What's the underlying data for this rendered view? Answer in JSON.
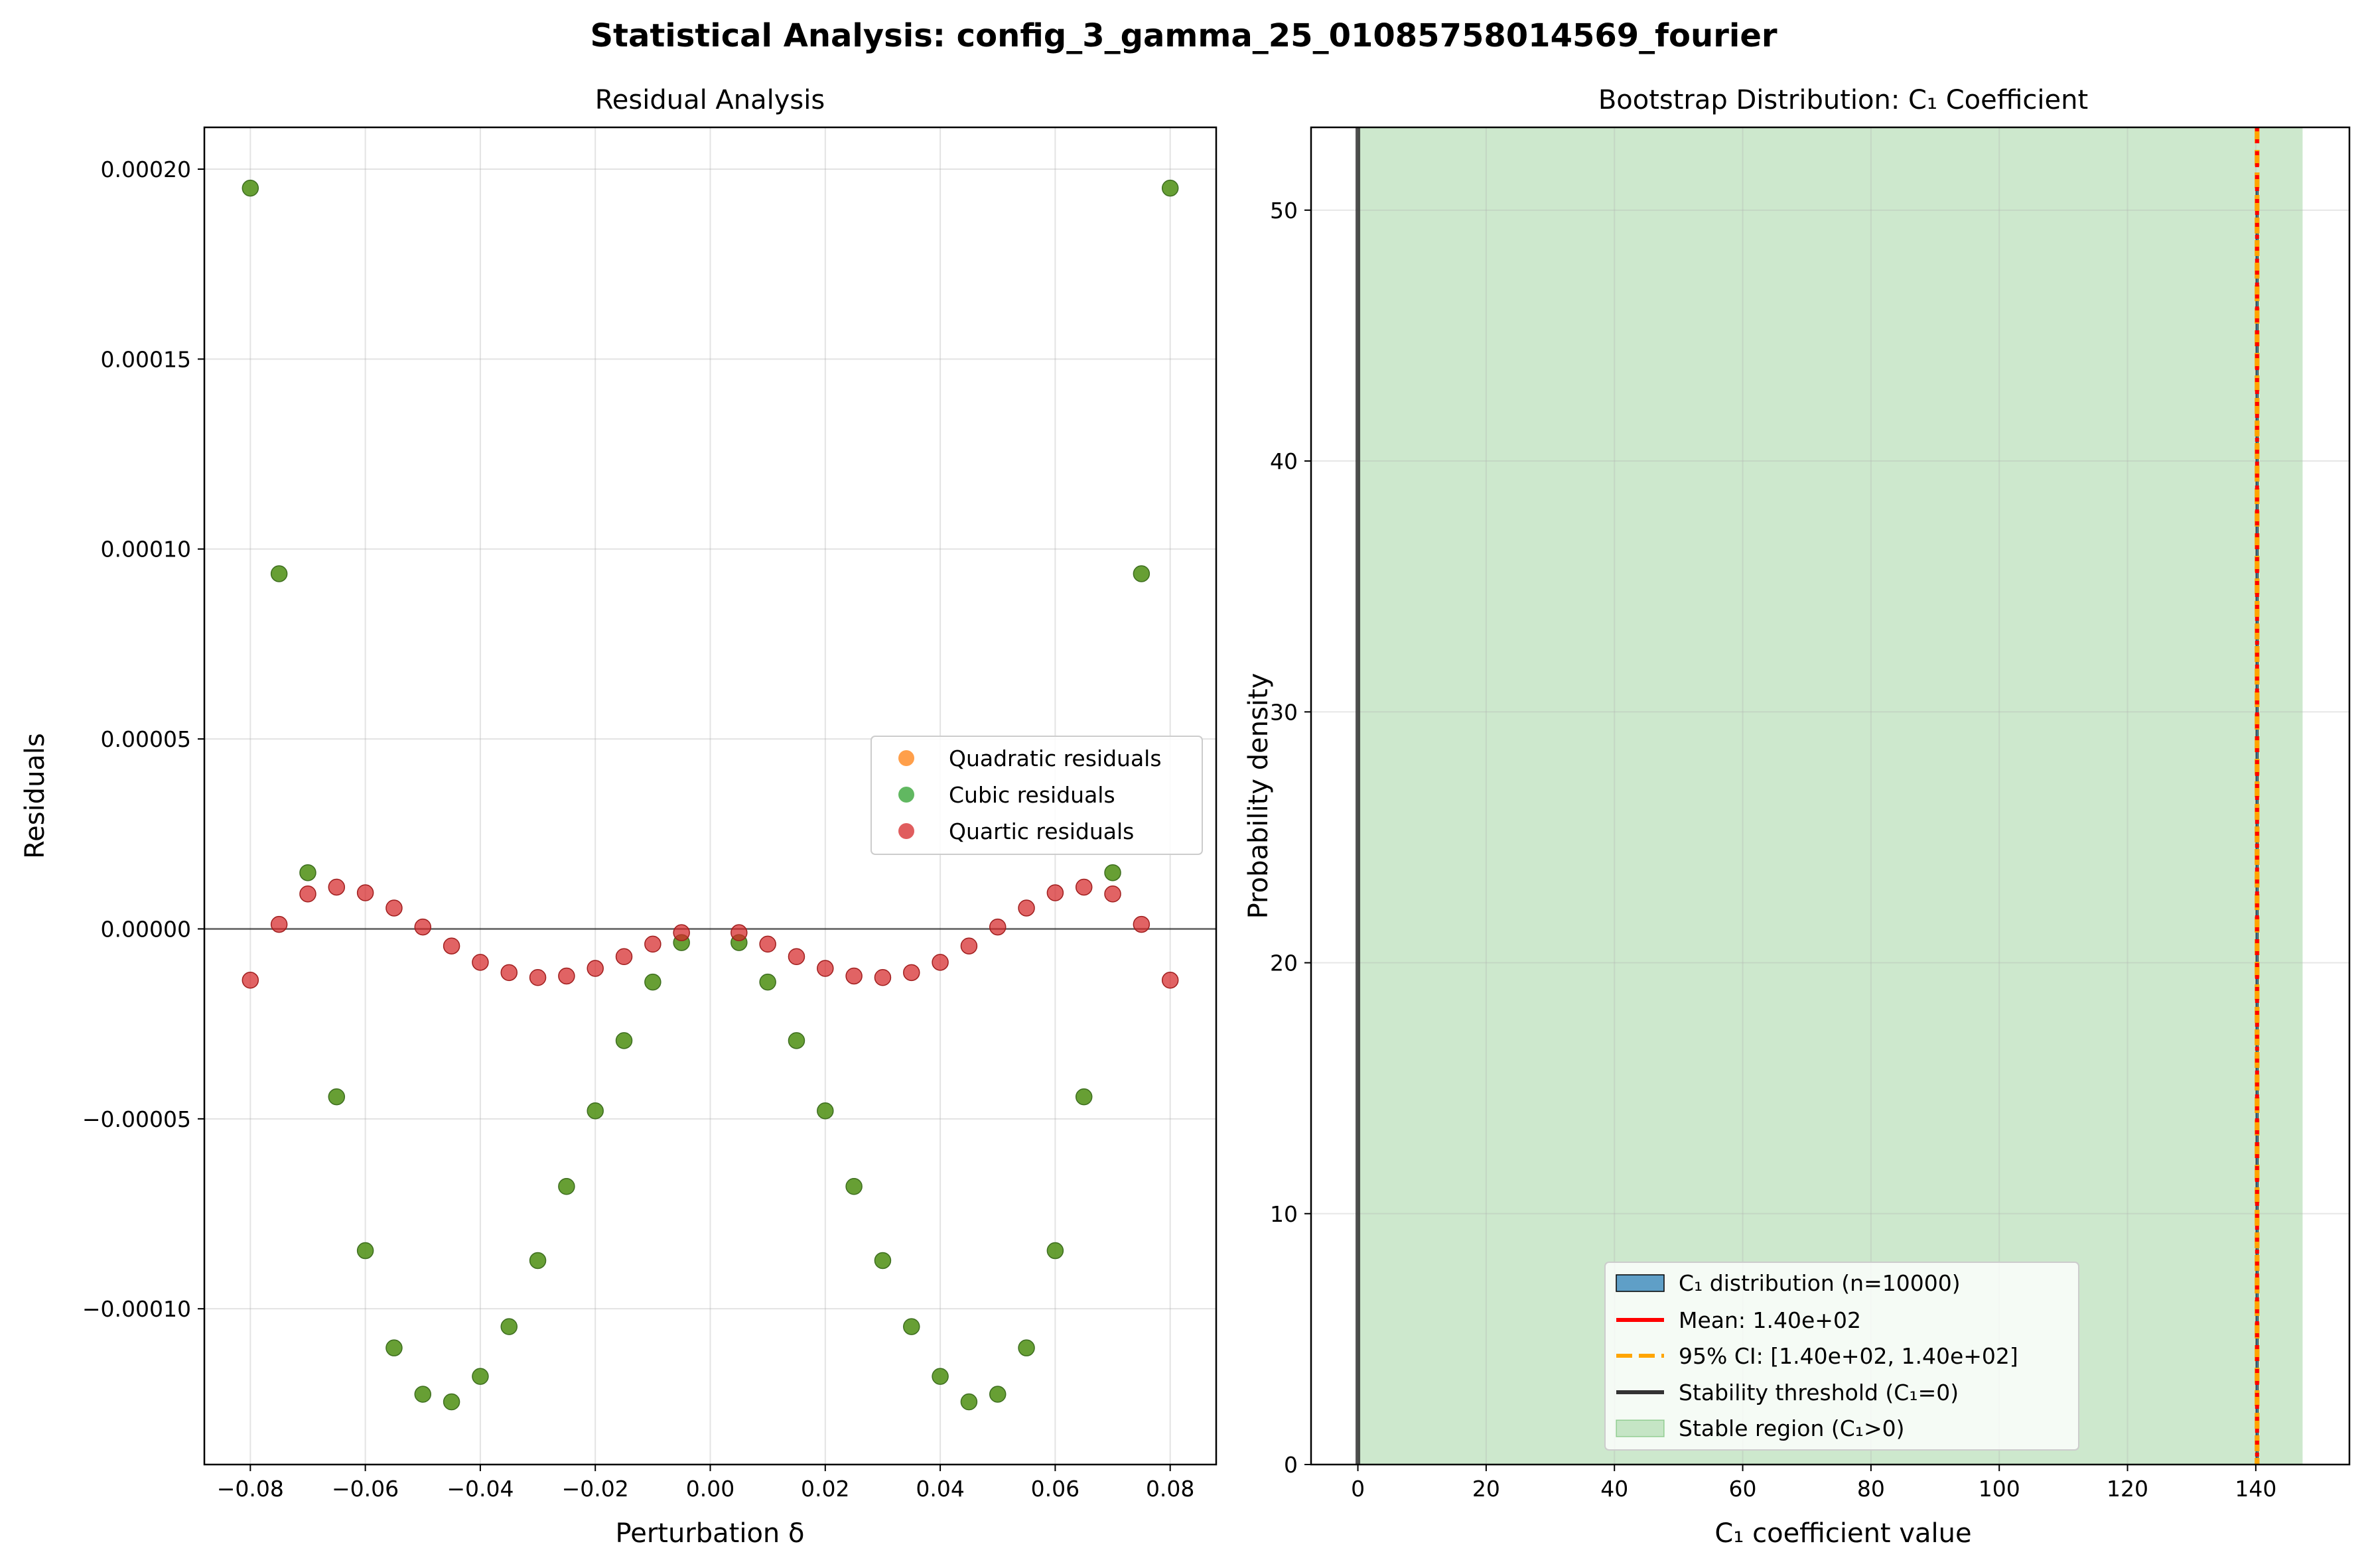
{
  "suptitle": "Statistical Analysis: config_3_gamma_25_01085758014569_fourier",
  "colors": {
    "quadratic": "#ff7f0e",
    "cubic": "#2ca02c",
    "quartic": "#d62728",
    "overlap": "#4f8d2b",
    "histogram": "#1f77b4",
    "mean": "#ff0000",
    "ci": "#ffa500",
    "threshold": "#333333",
    "stable_region": "#2ca02c"
  },
  "chart_data": [
    {
      "type": "scatter",
      "title": "Residual Analysis",
      "xlabel": "Perturbation δ",
      "ylabel": "Residuals",
      "xlim": [
        -0.088,
        0.088
      ],
      "ylim": [
        -0.000141,
        0.000211
      ],
      "xticks": [
        -0.08,
        -0.06,
        -0.04,
        -0.02,
        0.0,
        0.02,
        0.04,
        0.06,
        0.08
      ],
      "xtick_labels": [
        "−0.08",
        "−0.06",
        "−0.04",
        "−0.02",
        "0.00",
        "0.02",
        "0.04",
        "0.06",
        "0.08"
      ],
      "yticks": [
        -0.0001,
        -5e-05,
        0.0,
        5e-05,
        0.0001,
        0.00015,
        0.0002
      ],
      "ytick_labels": [
        "−0.00010",
        "−0.00005",
        "0.00000",
        "0.00005",
        "0.00010",
        "0.00015",
        "0.00020"
      ],
      "grid": true,
      "reference_line_y": 0,
      "legend_position": "center-right",
      "x": [
        -0.08,
        -0.075,
        -0.07,
        -0.065,
        -0.06,
        -0.055,
        -0.05,
        -0.045,
        -0.04,
        -0.035,
        -0.03,
        -0.025,
        -0.02,
        -0.015,
        -0.01,
        -0.005,
        0.005,
        0.01,
        0.015,
        0.02,
        0.025,
        0.03,
        0.035,
        0.04,
        0.045,
        0.05,
        0.055,
        0.06,
        0.065,
        0.07,
        0.075,
        0.08
      ],
      "series": [
        {
          "name": "Quadratic residuals",
          "color_key": "quadratic",
          "values": [
            0.000195,
            9.35e-05,
            1.48e-05,
            -4.42e-05,
            -8.47e-05,
            -0.0001103,
            -0.0001225,
            -0.0001245,
            -0.0001178,
            -0.0001047,
            -8.73e-05,
            -6.78e-05,
            -4.79e-05,
            -2.94e-05,
            -1.4e-05,
            -3.6e-06,
            -3.6e-06,
            -1.4e-05,
            -2.94e-05,
            -4.79e-05,
            -6.78e-05,
            -8.73e-05,
            -0.0001047,
            -0.0001178,
            -0.0001245,
            -0.0001225,
            -0.0001103,
            -8.47e-05,
            -4.42e-05,
            1.48e-05,
            9.35e-05,
            0.000195
          ]
        },
        {
          "name": "Cubic residuals",
          "color_key": "cubic",
          "values": [
            0.000195,
            9.35e-05,
            1.48e-05,
            -4.42e-05,
            -8.47e-05,
            -0.0001103,
            -0.0001225,
            -0.0001245,
            -0.0001178,
            -0.0001047,
            -8.73e-05,
            -6.78e-05,
            -4.79e-05,
            -2.94e-05,
            -1.4e-05,
            -3.6e-06,
            -3.6e-06,
            -1.4e-05,
            -2.94e-05,
            -4.79e-05,
            -6.78e-05,
            -8.73e-05,
            -0.0001047,
            -0.0001178,
            -0.0001245,
            -0.0001225,
            -0.0001103,
            -8.47e-05,
            -4.42e-05,
            1.48e-05,
            9.35e-05,
            0.000195
          ]
        },
        {
          "name": "Quartic residuals",
          "color_key": "quartic",
          "values": [
            -1.35e-05,
            1.2e-06,
            9.2e-06,
            1.1e-05,
            9.5e-06,
            5.5e-06,
            5e-07,
            -4.5e-06,
            -8.8e-06,
            -1.15e-05,
            -1.28e-05,
            -1.24e-05,
            -1.04e-05,
            -7.3e-06,
            -4e-06,
            -1e-06,
            -1e-06,
            -4e-06,
            -7.3e-06,
            -1.04e-05,
            -1.24e-05,
            -1.28e-05,
            -1.15e-05,
            -8.8e-06,
            -4.5e-06,
            5e-07,
            5.5e-06,
            9.5e-06,
            1.1e-05,
            9.2e-06,
            1.2e-06,
            -1.35e-05
          ]
        }
      ]
    },
    {
      "type": "histogram",
      "title": "Bootstrap Distribution: C₁ Coefficient",
      "xlabel": "C₁ coefficient value",
      "ylabel": "Probability density",
      "xlim": [
        -7.3,
        154.6
      ],
      "ylim": [
        0,
        53.3
      ],
      "xticks": [
        0,
        20,
        40,
        60,
        80,
        100,
        120,
        140
      ],
      "xtick_labels": [
        "0",
        "20",
        "40",
        "60",
        "80",
        "100",
        "120",
        "140"
      ],
      "yticks": [
        0,
        10,
        20,
        30,
        40,
        50
      ],
      "ytick_labels": [
        "0",
        "10",
        "20",
        "30",
        "40",
        "50"
      ],
      "grid": true,
      "legend_position": "lower-center",
      "mean": 140.2,
      "ci": [
        140.2,
        140.2
      ],
      "threshold": 0,
      "stable_region": [
        0,
        147.3
      ],
      "histogram_peak_density": 50.8,
      "legend": [
        {
          "label": "C₁ distribution (n=10000)",
          "kind": "patch",
          "color_key": "histogram"
        },
        {
          "label": "Mean: 1.40e+02",
          "kind": "line",
          "color_key": "mean"
        },
        {
          "label": "95% CI: [1.40e+02, 1.40e+02]",
          "kind": "dash",
          "color_key": "ci"
        },
        {
          "label": "Stability threshold (C₁=0)",
          "kind": "line",
          "color_key": "threshold"
        },
        {
          "label": "Stable region (C₁>0)",
          "kind": "patch",
          "color_key": "stable_region"
        }
      ]
    }
  ]
}
